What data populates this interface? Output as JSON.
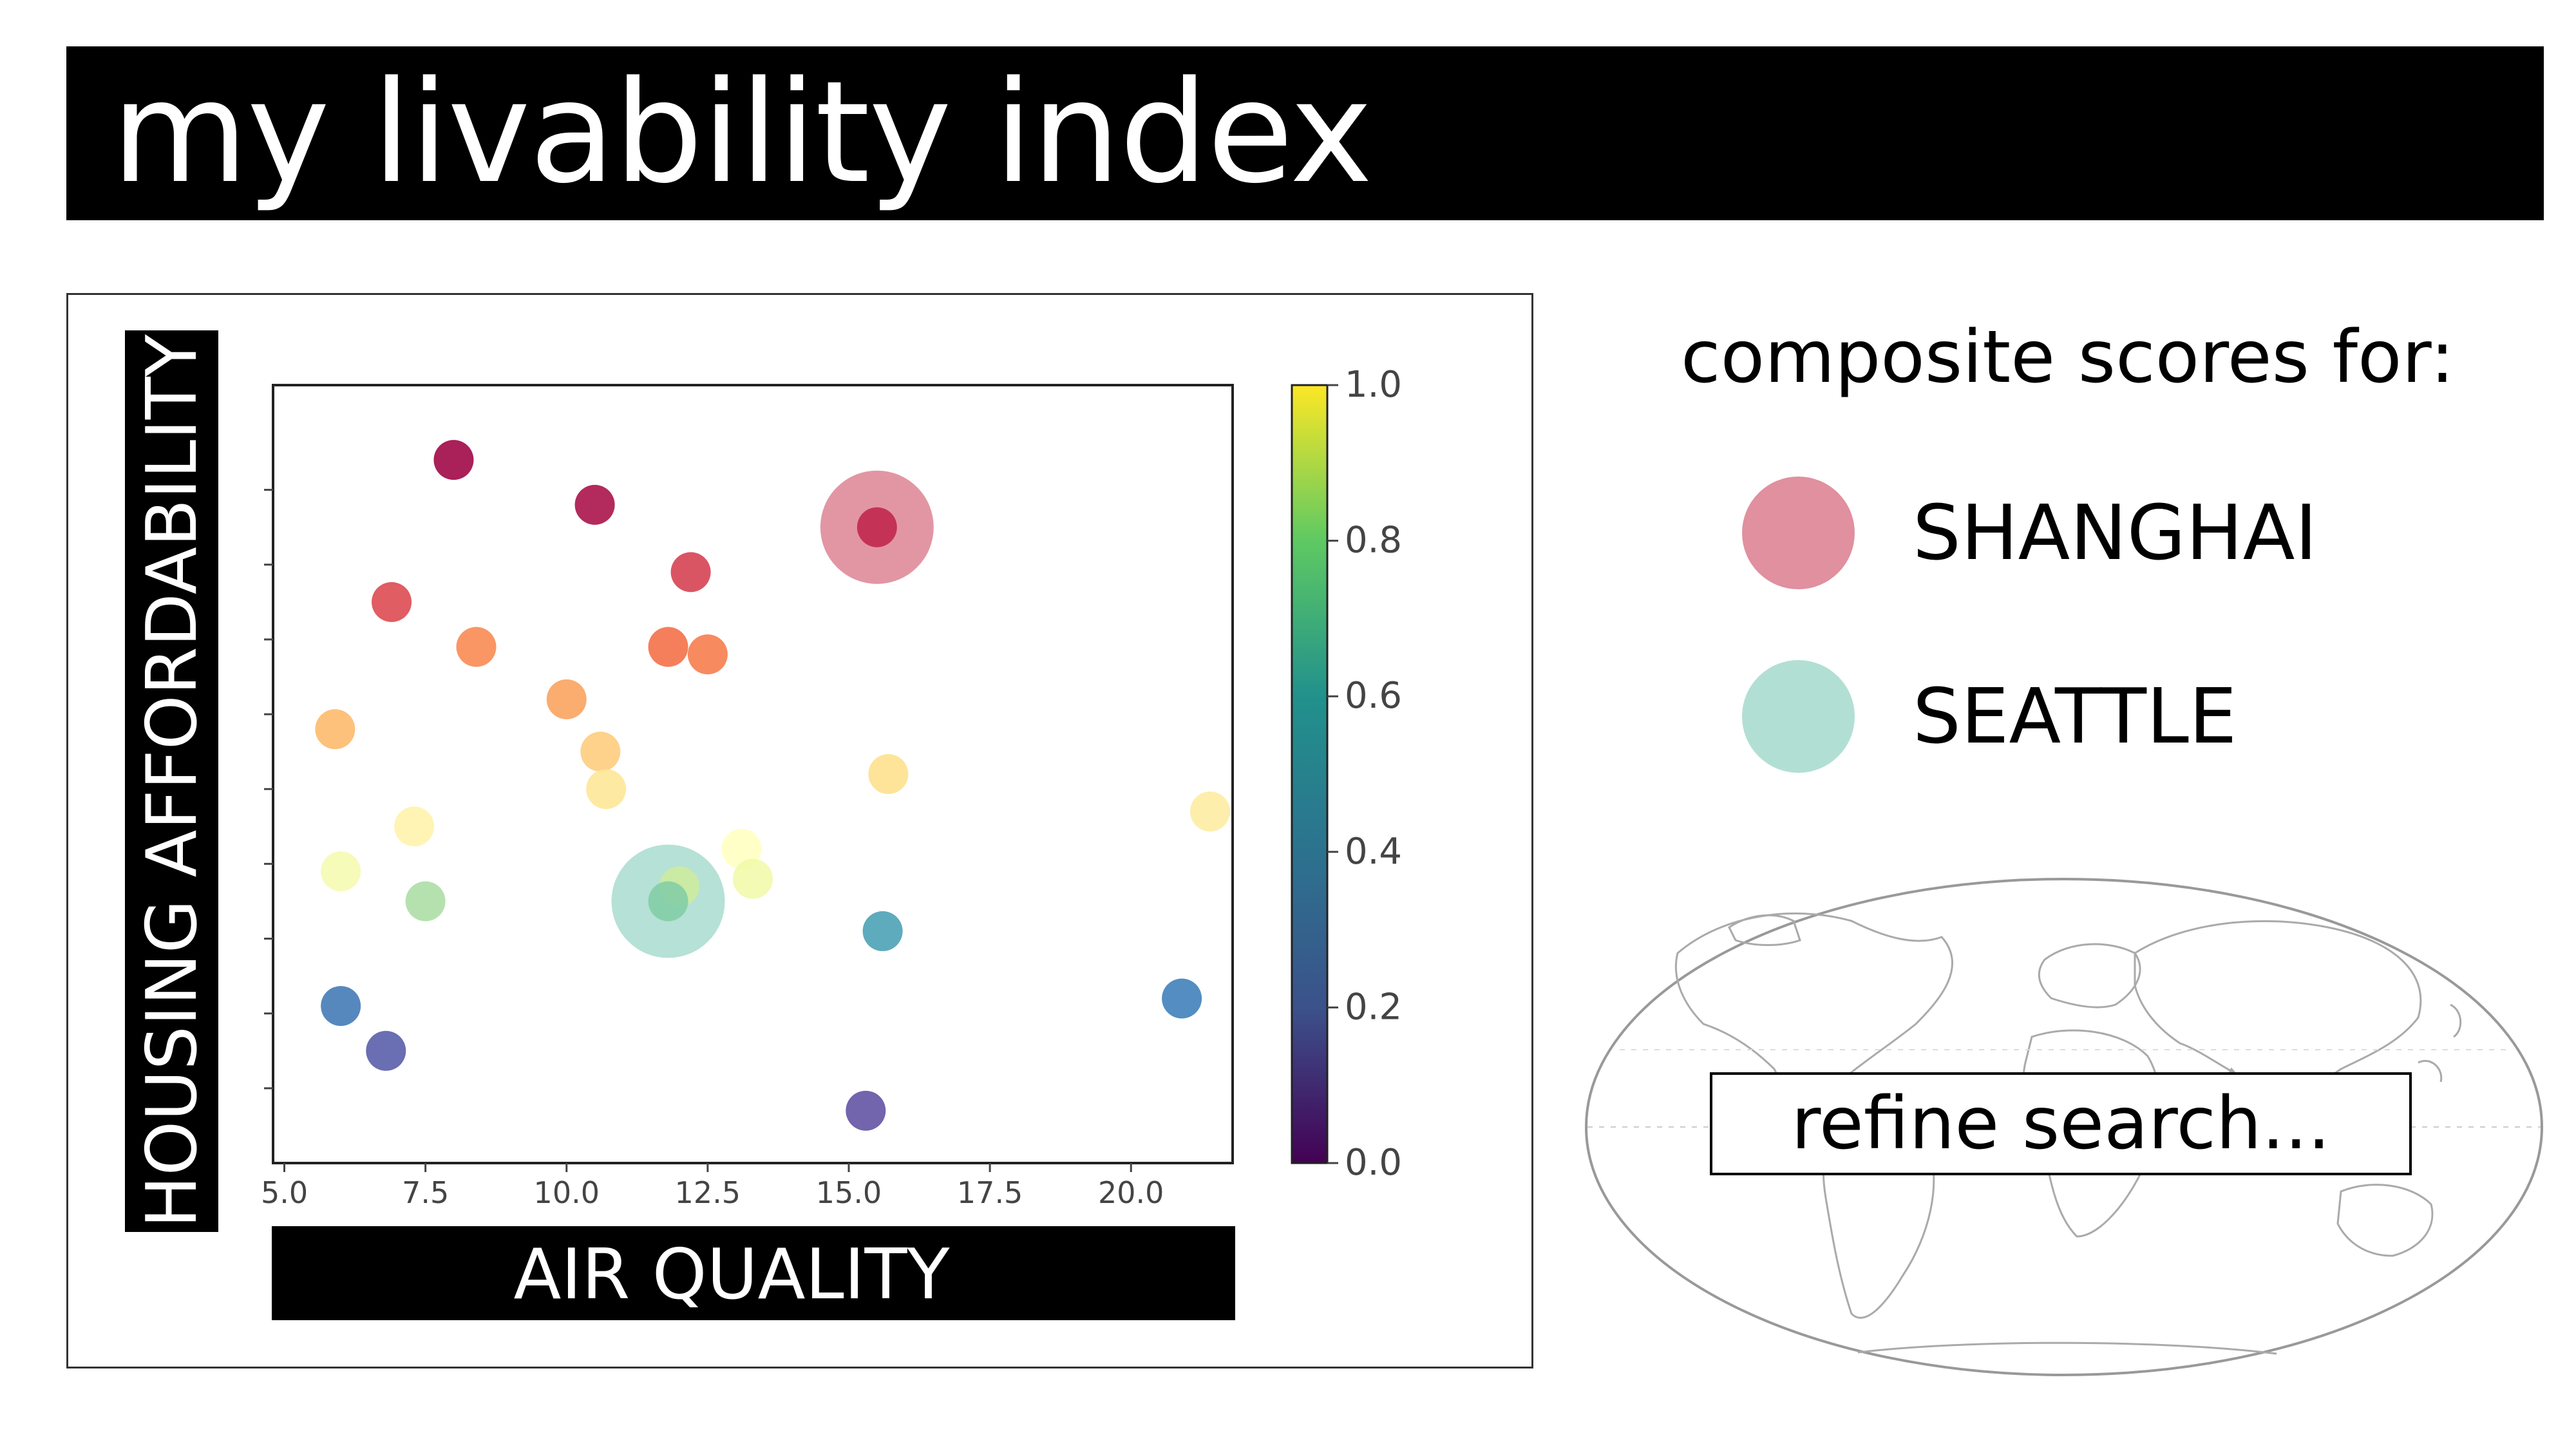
{
  "header": {
    "title": "my livability index"
  },
  "sidebar": {
    "title": "composite scores for:",
    "legend": [
      {
        "label": "SHANGHAI",
        "color": "#e0909f"
      },
      {
        "label": "SEATTLE",
        "color": "#b2dfd4"
      }
    ],
    "search": {
      "label": "refine search..."
    },
    "map_icon": "world-map-icon"
  },
  "chart_data": {
    "type": "scatter",
    "xlabel": "AIR QUALITY",
    "ylabel": "HOUSING AFFORDABILITY",
    "x_ticks": [
      "5.0",
      "7.5",
      "10.0",
      "12.5",
      "15.0",
      "17.5",
      "20.0"
    ],
    "xlim": [
      4.8,
      21.8
    ],
    "ylim": [
      0,
      10.4
    ],
    "colorbar": {
      "colormap": "viridis",
      "range": [
        0.0,
        1.0
      ],
      "ticks": [
        "0.0",
        "0.2",
        "0.4",
        "0.6",
        "0.8",
        "1.0"
      ]
    },
    "point_colormap": "Spectral",
    "points": [
      {
        "x": 8.0,
        "y": 9.4,
        "c": 0.0
      },
      {
        "x": 10.5,
        "y": 8.8,
        "c": 0.02
      },
      {
        "x": 15.5,
        "y": 8.5,
        "c": 0.06
      },
      {
        "x": 12.2,
        "y": 7.9,
        "c": 0.1
      },
      {
        "x": 6.9,
        "y": 7.5,
        "c": 0.12
      },
      {
        "x": 11.8,
        "y": 6.9,
        "c": 0.2
      },
      {
        "x": 12.5,
        "y": 6.8,
        "c": 0.22
      },
      {
        "x": 8.4,
        "y": 6.9,
        "c": 0.24
      },
      {
        "x": 10.0,
        "y": 6.2,
        "c": 0.28
      },
      {
        "x": 5.9,
        "y": 5.8,
        "c": 0.32
      },
      {
        "x": 10.6,
        "y": 5.5,
        "c": 0.36
      },
      {
        "x": 10.7,
        "y": 5.0,
        "c": 0.42
      },
      {
        "x": 15.7,
        "y": 5.2,
        "c": 0.4
      },
      {
        "x": 21.4,
        "y": 4.7,
        "c": 0.44
      },
      {
        "x": 7.3,
        "y": 4.5,
        "c": 0.46
      },
      {
        "x": 13.1,
        "y": 4.2,
        "c": 0.5
      },
      {
        "x": 6.0,
        "y": 3.9,
        "c": 0.54
      },
      {
        "x": 13.3,
        "y": 3.8,
        "c": 0.56
      },
      {
        "x": 12.0,
        "y": 3.7,
        "c": 0.64
      },
      {
        "x": 7.5,
        "y": 3.5,
        "c": 0.7
      },
      {
        "x": 11.8,
        "y": 3.5,
        "c": 0.76
      },
      {
        "x": 15.6,
        "y": 3.1,
        "c": 0.86
      },
      {
        "x": 20.9,
        "y": 2.2,
        "c": 0.92
      },
      {
        "x": 6.0,
        "y": 2.1,
        "c": 0.93
      },
      {
        "x": 6.8,
        "y": 1.5,
        "c": 0.98
      },
      {
        "x": 15.3,
        "y": 0.7,
        "c": 1.0
      }
    ],
    "highlights": [
      {
        "label": "SHANGHAI",
        "x": 15.5,
        "y": 8.5,
        "color": "#e0909f"
      },
      {
        "label": "SEATTLE",
        "x": 11.8,
        "y": 3.5,
        "color": "#b2dfd4"
      }
    ]
  }
}
